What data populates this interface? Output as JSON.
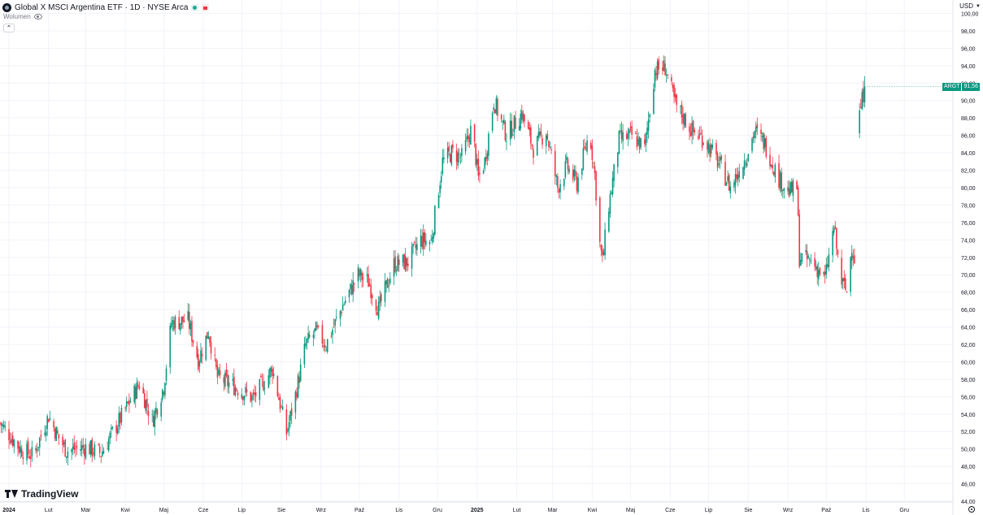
{
  "legend": {
    "title": "Global X MSCI Argentina ETF · 1D · NYSE Arca",
    "volume_label": "Wolumen"
  },
  "currency": "USD",
  "price_tag": {
    "symbol": "ARGT",
    "value": "91,56"
  },
  "brand": "TradingView",
  "colors": {
    "up": "#089981",
    "down": "#f23645",
    "grid": "#f0f3fa",
    "text": "#131722"
  },
  "icons": [
    "logo-icon",
    "eye-icon",
    "chevron-up-icon",
    "chevron-down-icon",
    "tradingview-logo-icon",
    "settings-icon"
  ],
  "chart_data": {
    "type": "candlestick",
    "title": "Global X MSCI Argentina ETF · 1D · NYSE Arca",
    "ylim": [
      44,
      100
    ],
    "y_ticks": [
      "100,00",
      "98,00",
      "96,00",
      "94,00",
      "92,00",
      "90,00",
      "88,00",
      "86,00",
      "84,00",
      "82,00",
      "80,00",
      "78,00",
      "76,00",
      "74,00",
      "72,00",
      "70,00",
      "68,00",
      "66,00",
      "64,00",
      "62,00",
      "60,00",
      "58,00",
      "56,00",
      "54,00",
      "52,00",
      "50,00",
      "48,00",
      "46,00",
      "44,00"
    ],
    "x_ticks": [
      "2024",
      "Lut",
      "Mar",
      "Kwi",
      "Maj",
      "Cze",
      "Lip",
      "Sie",
      "Wrz",
      "Paź",
      "Lis",
      "Gru",
      "2025",
      "Lut",
      "Mar",
      "Kwi",
      "Maj",
      "Cze",
      "Lip",
      "Sie",
      "Wrz",
      "Paź",
      "Lis",
      "Gru"
    ],
    "x_tick_dates": [
      "2024-01-01",
      "2024-02-01",
      "2024-03-01",
      "2024-04-01",
      "2024-05-01",
      "2024-06-01",
      "2024-07-01",
      "2024-08-01",
      "2024-09-01",
      "2024-10-01",
      "2024-11-01",
      "2024-12-01",
      "2025-01-01",
      "2025-02-01",
      "2025-03-01",
      "2025-04-01",
      "2025-05-01",
      "2025-06-01",
      "2025-07-01",
      "2025-08-01",
      "2025-09-01",
      "2025-10-01",
      "2025-11-01",
      "2025-12-01"
    ],
    "x_range": [
      "2023-12-25",
      "2026-01-08"
    ],
    "grid": true,
    "legend_position": "top-left",
    "gaps": [
      [
        "2025-10-24",
        "2025-10-27"
      ]
    ],
    "anchors": [
      [
        "2023-12-25",
        53.0
      ],
      [
        "2024-01-10",
        50.0
      ],
      [
        "2024-01-20",
        49.2
      ],
      [
        "2024-02-01",
        53.8
      ],
      [
        "2024-02-08",
        51.5
      ],
      [
        "2024-02-15",
        49.8
      ],
      [
        "2024-03-01",
        50.2
      ],
      [
        "2024-03-13",
        49.5
      ],
      [
        "2024-04-01",
        54.5
      ],
      [
        "2024-04-12",
        57.5
      ],
      [
        "2024-04-22",
        53.2
      ],
      [
        "2024-05-01",
        57.2
      ],
      [
        "2024-05-07",
        64.5
      ],
      [
        "2024-05-20",
        64.8
      ],
      [
        "2024-05-28",
        60.2
      ],
      [
        "2024-06-05",
        63.5
      ],
      [
        "2024-06-12",
        58.2
      ],
      [
        "2024-06-25",
        57.2
      ],
      [
        "2024-07-10",
        55.8
      ],
      [
        "2024-07-25",
        59.2
      ],
      [
        "2024-08-05",
        51.8
      ],
      [
        "2024-08-12",
        56.2
      ],
      [
        "2024-08-20",
        62.0
      ],
      [
        "2024-08-28",
        63.5
      ],
      [
        "2024-09-05",
        62.0
      ],
      [
        "2024-09-18",
        66.5
      ],
      [
        "2024-09-30",
        70.0
      ],
      [
        "2024-10-08",
        69.2
      ],
      [
        "2024-10-16",
        66.0
      ],
      [
        "2024-10-28",
        71.2
      ],
      [
        "2024-11-08",
        71.5
      ],
      [
        "2024-11-18",
        74.0
      ],
      [
        "2024-11-26",
        73.8
      ],
      [
        "2024-12-05",
        83.0
      ],
      [
        "2024-12-12",
        84.0
      ],
      [
        "2024-12-20",
        83.5
      ],
      [
        "2024-12-28",
        87.0
      ],
      [
        "2025-01-02",
        81.0
      ],
      [
        "2025-01-07",
        83.0
      ],
      [
        "2025-01-14",
        90.0
      ],
      [
        "2025-01-24",
        86.0
      ],
      [
        "2025-02-05",
        88.5
      ],
      [
        "2025-02-14",
        84.5
      ],
      [
        "2025-02-24",
        86.5
      ],
      [
        "2025-03-05",
        80.0
      ],
      [
        "2025-03-12",
        82.5
      ],
      [
        "2025-03-20",
        80.5
      ],
      [
        "2025-03-30",
        86.5
      ],
      [
        "2025-04-03",
        81.5
      ],
      [
        "2025-04-07",
        73.5
      ],
      [
        "2025-04-09",
        71.5
      ],
      [
        "2025-04-14",
        78.0
      ],
      [
        "2025-04-22",
        85.5
      ],
      [
        "2025-05-02",
        86.0
      ],
      [
        "2025-05-12",
        84.5
      ],
      [
        "2025-05-20",
        93.5
      ],
      [
        "2025-05-28",
        93.8
      ],
      [
        "2025-06-05",
        89.5
      ],
      [
        "2025-06-18",
        86.5
      ],
      [
        "2025-06-28",
        85.5
      ],
      [
        "2025-07-10",
        82.5
      ],
      [
        "2025-07-18",
        80.0
      ],
      [
        "2025-07-30",
        83.5
      ],
      [
        "2025-08-06",
        86.5
      ],
      [
        "2025-08-14",
        85.0
      ],
      [
        "2025-08-25",
        81.0
      ],
      [
        "2025-09-02",
        79.5
      ],
      [
        "2025-09-08",
        80.0
      ],
      [
        "2025-09-10",
        72.0
      ],
      [
        "2025-09-20",
        71.5
      ],
      [
        "2025-09-30",
        69.5
      ],
      [
        "2025-10-07",
        75.5
      ],
      [
        "2025-10-12",
        69.5
      ],
      [
        "2025-10-17",
        68.0
      ],
      [
        "2025-10-21",
        73.5
      ],
      [
        "2025-10-24",
        71.0
      ],
      [
        "2025-10-27",
        88.5
      ],
      [
        "2025-10-31",
        91.6
      ]
    ]
  }
}
